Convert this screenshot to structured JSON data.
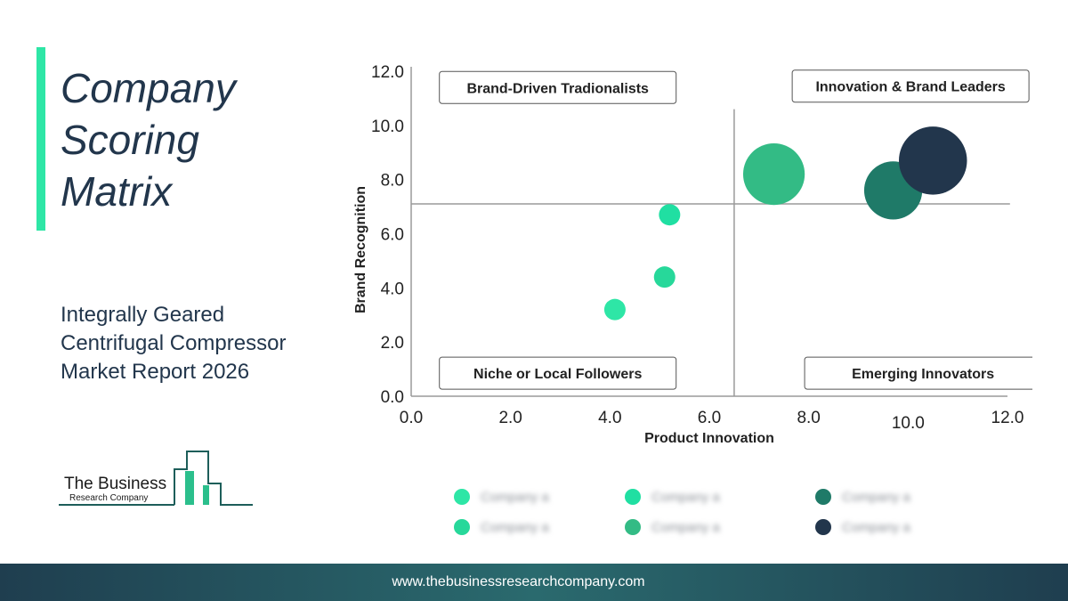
{
  "header": {
    "title_lines": [
      "Company",
      "Scoring",
      "Matrix"
    ],
    "subtitle_lines": [
      "Integrally Geared",
      "Centrifugal Compressor",
      "Market Report 2026"
    ]
  },
  "logo": {
    "line1": "The Business",
    "line2": "Research Company"
  },
  "footer": {
    "url": "www.thebusinessresearchcompany.com"
  },
  "colors": {
    "accent": "#2ee6a6",
    "navy": "#22364c",
    "footer_bg": "#245a62"
  },
  "chart_data": {
    "type": "scatter",
    "xlabel": "Product Innovation",
    "ylabel": "Brand Recognition",
    "xlim": [
      0,
      12
    ],
    "ylim": [
      0,
      12
    ],
    "x_ticks": [
      "0.0",
      "2.0",
      "4.0",
      "6.0",
      "8.0",
      "10.0",
      "12.0"
    ],
    "y_ticks": [
      "0.0",
      "2.0",
      "4.0",
      "6.0",
      "8.0",
      "10.0",
      "12.0"
    ],
    "divider_x": 6.5,
    "divider_y": 7.1,
    "grid": false,
    "quadrants": {
      "top_left": "Brand-Driven Tradionalists",
      "top_right": "Innovation & Brand Leaders",
      "bottom_left": "Niche or Local Followers",
      "bottom_right": "Emerging Innovators"
    },
    "points": [
      {
        "x": 4.1,
        "y": 3.2,
        "size": 1,
        "color": "#2ee6a6"
      },
      {
        "x": 5.1,
        "y": 4.4,
        "size": 1,
        "color": "#27d89a"
      },
      {
        "x": 5.2,
        "y": 6.7,
        "size": 1,
        "color": "#20dfa2"
      },
      {
        "x": 7.3,
        "y": 8.2,
        "size": 3.6,
        "color": "#33bb85"
      },
      {
        "x": 9.7,
        "y": 7.6,
        "size": 3.2,
        "color": "#1f7a68"
      },
      {
        "x": 10.5,
        "y": 8.7,
        "size": 4.4,
        "color": "#22364c"
      }
    ],
    "legend": {
      "placement": "bottom",
      "items": [
        {
          "label": "Company a",
          "color": "#2ee6a6"
        },
        {
          "label": "Company a",
          "color": "#20dfa2"
        },
        {
          "label": "Company a",
          "color": "#1f7a68"
        },
        {
          "label": "Company a",
          "color": "#27d89a"
        },
        {
          "label": "Company a",
          "color": "#33bb85"
        },
        {
          "label": "Company a",
          "color": "#22364c"
        }
      ]
    }
  }
}
